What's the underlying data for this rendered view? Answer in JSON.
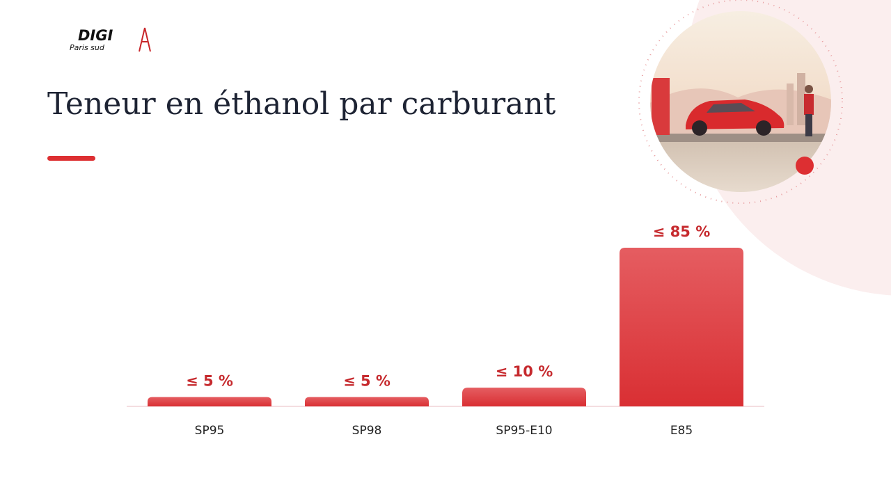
{
  "logo": {
    "name": "DIGI",
    "tagline": "Paris sud"
  },
  "chart_data": {
    "type": "bar",
    "title": "Teneur en éthanol par carburant",
    "categories": [
      "SP95",
      "SP98",
      "SP95-E10",
      "E85"
    ],
    "values": [
      5,
      5,
      10,
      85
    ],
    "value_labels": [
      "≤ 5 %",
      "≤ 5 %",
      "≤ 10 %",
      "≤ 85 %"
    ],
    "color": "#dd3a3e"
  }
}
